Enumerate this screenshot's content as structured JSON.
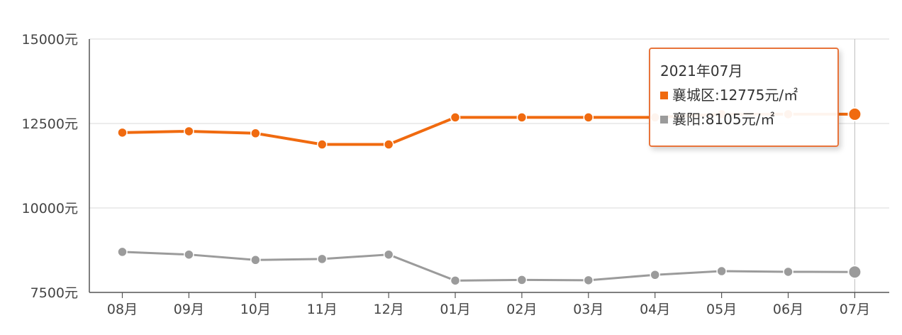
{
  "chart_data": {
    "type": "line",
    "categories": [
      "08月",
      "09月",
      "10月",
      "11月",
      "12月",
      "01月",
      "02月",
      "03月",
      "04月",
      "05月",
      "06月",
      "07月"
    ],
    "series": [
      {
        "name": "襄城区",
        "color": "#f06a0f",
        "values": [
          12230,
          12270,
          12210,
          11880,
          11880,
          12680,
          12680,
          12680,
          12680,
          12775,
          12775,
          12775
        ]
      },
      {
        "name": "襄阳",
        "color": "#9b9b9b",
        "values": [
          8700,
          8620,
          8460,
          8490,
          8620,
          7850,
          7870,
          7860,
          8020,
          8130,
          8110,
          8105
        ]
      }
    ],
    "y_ticks": [
      "15000元",
      "12500元",
      "10000元",
      "7500元"
    ],
    "ylim": [
      7500,
      15000
    ],
    "grid": true,
    "highlight_index": 11
  },
  "tooltip": {
    "title": "2021年07月",
    "rows": [
      {
        "label": "襄城区:12775元/㎡",
        "color": "#f06a0f"
      },
      {
        "label": "襄阳:8105元/㎡",
        "color": "#9b9b9b"
      }
    ]
  }
}
